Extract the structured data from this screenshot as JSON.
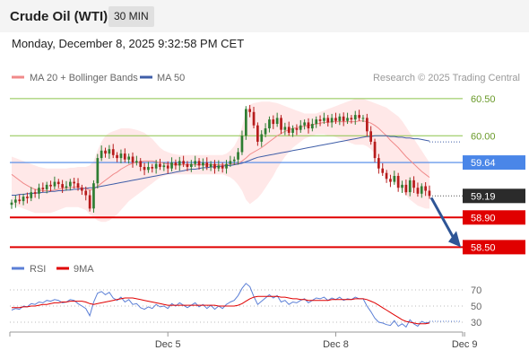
{
  "header": {
    "instrument": "Crude Oil (WTI)",
    "timeframe": "30 MIN",
    "datetime": "Monday, December 8, 2025 9:32:58 PM CET"
  },
  "legend": {
    "ma20": "MA 20 + Bollinger Bands",
    "ma50": "MA 50",
    "credit": "Research © 2025 Trading Central",
    "rsi": "RSI",
    "rsi_ma": "9MA"
  },
  "colors": {
    "candle_up": "#2e7d32",
    "candle_down": "#b71c1c",
    "bollinger": "#ffd6d6",
    "ma20": "#f08a8a",
    "ma50": "#3f5ea8",
    "resistance": "#8bc34a",
    "pivot": "#4a86e8",
    "support": "#e00000",
    "rsi": "#5b7fd6",
    "rsi_ma": "#e00000",
    "current": "#2b2b2b",
    "arrow": "#2e5596"
  },
  "chart_data": {
    "type": "candlestick",
    "y_range": [
      58.42,
      60.62
    ],
    "levels": [
      {
        "label": "60.50",
        "value": 60.5,
        "kind": "resistance"
      },
      {
        "label": "60.00",
        "value": 60.0,
        "kind": "resistance"
      },
      {
        "label": "59.64",
        "value": 59.64,
        "kind": "pivot"
      },
      {
        "label": "59.19",
        "value": 59.19,
        "kind": "current"
      },
      {
        "label": "58.90",
        "value": 58.9,
        "kind": "support"
      },
      {
        "label": "58.50",
        "value": 58.5,
        "kind": "support"
      }
    ],
    "x_ticks": [
      "Dec 5",
      "Dec 8",
      "Dec 9"
    ],
    "x_tick_index": [
      40,
      83,
      116
    ],
    "close": [
      59.1,
      59.14,
      59.12,
      59.18,
      59.16,
      59.24,
      59.22,
      59.3,
      59.28,
      59.34,
      59.32,
      59.38,
      59.35,
      59.3,
      59.32,
      59.38,
      59.36,
      59.3,
      59.26,
      59.2,
      59.02,
      59.36,
      59.7,
      59.8,
      59.76,
      59.82,
      59.74,
      59.7,
      59.76,
      59.68,
      59.72,
      59.64,
      59.66,
      59.58,
      59.54,
      59.58,
      59.56,
      59.62,
      59.58,
      59.6,
      59.56,
      59.64,
      59.6,
      59.66,
      59.62,
      59.58,
      59.62,
      59.66,
      59.6,
      59.64,
      59.58,
      59.62,
      59.56,
      59.6,
      59.56,
      59.62,
      59.66,
      59.68,
      59.78,
      60.0,
      60.36,
      60.32,
      60.14,
      59.92,
      60.02,
      60.1,
      60.22,
      60.16,
      60.24,
      60.08,
      60.12,
      60.04,
      60.1,
      60.08,
      60.14,
      60.18,
      60.1,
      60.16,
      60.22,
      60.2,
      60.24,
      60.18,
      60.24,
      60.2,
      60.26,
      60.2,
      60.24,
      60.22,
      60.28,
      60.24,
      60.24,
      60.06,
      59.92,
      59.7,
      59.56,
      59.5,
      59.42,
      59.38,
      59.46,
      59.3,
      59.34,
      59.24,
      59.4,
      59.3,
      59.22,
      59.32,
      59.26,
      59.19
    ],
    "ma20": [
      59.48,
      59.44,
      59.4,
      59.36,
      59.33,
      59.3,
      59.28,
      59.27,
      59.26,
      59.26,
      59.26,
      59.27,
      59.28,
      59.29,
      59.3,
      59.3,
      59.31,
      59.31,
      59.3,
      59.29,
      59.27,
      59.28,
      59.32,
      59.36,
      59.4,
      59.44,
      59.48,
      59.51,
      59.55,
      59.58,
      59.61,
      59.63,
      59.64,
      59.65,
      59.66,
      59.66,
      59.66,
      59.65,
      59.64,
      59.63,
      59.62,
      59.62,
      59.61,
      59.61,
      59.61,
      59.61,
      59.61,
      59.61,
      59.61,
      59.61,
      59.61,
      59.61,
      59.61,
      59.61,
      59.61,
      59.61,
      59.62,
      59.62,
      59.63,
      59.66,
      59.7,
      59.75,
      59.78,
      59.81,
      59.84,
      59.88,
      59.92,
      59.96,
      60.0,
      60.03,
      60.06,
      60.08,
      60.1,
      60.11,
      60.12,
      60.13,
      60.14,
      60.15,
      60.16,
      60.17,
      60.18,
      60.18,
      60.19,
      60.19,
      60.19,
      60.19,
      60.19,
      60.19,
      60.19,
      60.2,
      60.2,
      60.19,
      60.17,
      60.14,
      60.1,
      60.05,
      60.0,
      59.94,
      59.89,
      59.84,
      59.78,
      59.72,
      59.67,
      59.62,
      59.57,
      59.52,
      59.48,
      59.44
    ],
    "bb_upper": [
      59.72,
      59.7,
      59.68,
      59.66,
      59.64,
      59.62,
      59.6,
      59.58,
      59.57,
      59.56,
      59.56,
      59.56,
      59.56,
      59.56,
      59.56,
      59.57,
      59.57,
      59.58,
      59.58,
      59.58,
      59.6,
      59.66,
      59.8,
      59.92,
      60.0,
      60.04,
      60.06,
      60.08,
      60.1,
      60.1,
      60.1,
      60.09,
      60.08,
      60.06,
      60.04,
      60.0,
      59.96,
      59.9,
      59.84,
      59.8,
      59.78,
      59.76,
      59.75,
      59.74,
      59.74,
      59.74,
      59.74,
      59.74,
      59.74,
      59.74,
      59.74,
      59.74,
      59.74,
      59.74,
      59.74,
      59.76,
      59.8,
      59.86,
      59.96,
      60.12,
      60.34,
      60.42,
      60.44,
      60.45,
      60.46,
      60.46,
      60.46,
      60.45,
      60.44,
      60.42,
      60.4,
      60.38,
      60.36,
      60.34,
      60.32,
      60.3,
      60.3,
      60.3,
      60.3,
      60.32,
      60.34,
      60.36,
      60.38,
      60.4,
      60.42,
      60.44,
      60.46,
      60.48,
      60.5,
      60.5,
      60.5,
      60.48,
      60.46,
      60.44,
      60.42,
      60.4,
      60.38,
      60.34,
      60.3,
      60.26,
      60.2,
      60.12,
      60.04,
      59.96,
      59.88,
      59.8,
      59.72,
      59.64
    ],
    "bb_lower": [
      59.08,
      59.06,
      59.04,
      59.02,
      59.0,
      58.98,
      58.96,
      58.96,
      58.96,
      58.96,
      58.96,
      58.98,
      59.0,
      59.02,
      59.04,
      59.04,
      59.04,
      59.04,
      59.02,
      59.0,
      58.94,
      58.9,
      58.86,
      58.84,
      58.84,
      58.86,
      58.9,
      58.94,
      59.0,
      59.06,
      59.12,
      59.16,
      59.2,
      59.24,
      59.28,
      59.32,
      59.36,
      59.4,
      59.44,
      59.46,
      59.48,
      59.48,
      59.48,
      59.48,
      59.48,
      59.48,
      59.48,
      59.48,
      59.48,
      59.48,
      59.48,
      59.48,
      59.48,
      59.48,
      59.48,
      59.46,
      59.44,
      59.4,
      59.34,
      59.26,
      59.14,
      59.08,
      59.12,
      59.16,
      59.22,
      59.3,
      59.38,
      59.46,
      59.56,
      59.64,
      59.72,
      59.78,
      59.84,
      59.88,
      59.92,
      59.96,
      59.98,
      60.0,
      60.02,
      60.02,
      60.02,
      60.0,
      60.0,
      59.98,
      59.96,
      59.94,
      59.92,
      59.9,
      59.88,
      59.88,
      59.88,
      59.86,
      59.82,
      59.76,
      59.68,
      59.6,
      59.52,
      59.44,
      59.38,
      59.32,
      59.26,
      59.2,
      59.14,
      59.1,
      59.06,
      59.04,
      59.02,
      59.02
    ],
    "ma50": [
      59.2,
      59.2,
      59.21,
      59.21,
      59.22,
      59.22,
      59.23,
      59.23,
      59.24,
      59.24,
      59.25,
      59.25,
      59.26,
      59.26,
      59.27,
      59.27,
      59.28,
      59.28,
      59.29,
      59.29,
      59.3,
      59.3,
      59.31,
      59.32,
      59.33,
      59.34,
      59.35,
      59.36,
      59.37,
      59.38,
      59.39,
      59.4,
      59.41,
      59.42,
      59.43,
      59.44,
      59.45,
      59.46,
      59.47,
      59.48,
      59.49,
      59.5,
      59.51,
      59.52,
      59.53,
      59.54,
      59.55,
      59.55,
      59.56,
      59.57,
      59.57,
      59.58,
      59.58,
      59.59,
      59.59,
      59.6,
      59.6,
      59.61,
      59.62,
      59.63,
      59.65,
      59.67,
      59.69,
      59.71,
      59.72,
      59.73,
      59.74,
      59.75,
      59.76,
      59.77,
      59.78,
      59.79,
      59.8,
      59.81,
      59.82,
      59.83,
      59.84,
      59.85,
      59.86,
      59.87,
      59.88,
      59.89,
      59.9,
      59.91,
      59.92,
      59.93,
      59.94,
      59.95,
      59.96,
      59.97,
      59.98,
      59.99,
      59.99,
      60.0,
      60.0,
      60.0,
      60.0,
      59.99,
      59.99,
      59.98,
      59.98,
      59.97,
      59.97,
      59.96,
      59.96,
      59.95,
      59.94,
      59.93
    ],
    "rsi": [
      45,
      47,
      46,
      50,
      49,
      53,
      52,
      55,
      54,
      57,
      56,
      58,
      57,
      54,
      55,
      58,
      57,
      53,
      50,
      47,
      38,
      55,
      66,
      68,
      64,
      67,
      60,
      57,
      61,
      55,
      58,
      52,
      53,
      48,
      46,
      49,
      47,
      52,
      49,
      50,
      47,
      53,
      50,
      54,
      51,
      48,
      51,
      54,
      49,
      52,
      47,
      51,
      46,
      50,
      47,
      52,
      55,
      57,
      63,
      72,
      78,
      74,
      62,
      52,
      56,
      60,
      64,
      60,
      63,
      55,
      57,
      52,
      55,
      54,
      57,
      59,
      54,
      57,
      60,
      59,
      61,
      57,
      60,
      58,
      61,
      57,
      59,
      58,
      61,
      59,
      59,
      50,
      43,
      35,
      30,
      29,
      27,
      26,
      32,
      25,
      28,
      24,
      33,
      28,
      25,
      31,
      29,
      30
    ],
    "rsi_ma": [
      48,
      48,
      48,
      49,
      49,
      50,
      50,
      51,
      52,
      52,
      53,
      54,
      54,
      55,
      55,
      56,
      56,
      56,
      56,
      55,
      53,
      52,
      53,
      54,
      55,
      56,
      57,
      58,
      59,
      60,
      60,
      60,
      59,
      58,
      57,
      56,
      55,
      54,
      53,
      52,
      51,
      51,
      51,
      51,
      51,
      51,
      51,
      51,
      51,
      51,
      51,
      51,
      51,
      50,
      50,
      50,
      50,
      50,
      51,
      53,
      56,
      59,
      61,
      62,
      62,
      62,
      62,
      62,
      62,
      61,
      61,
      60,
      59,
      59,
      58,
      58,
      57,
      57,
      57,
      57,
      57,
      57,
      58,
      58,
      58,
      58,
      58,
      58,
      59,
      59,
      59,
      58,
      56,
      54,
      51,
      48,
      45,
      42,
      39,
      36,
      33,
      31,
      30,
      29,
      28,
      28,
      28,
      29
    ],
    "rsi_levels": [
      {
        "label": "70",
        "value": 70
      },
      {
        "label": "50",
        "value": 50
      },
      {
        "label": "30",
        "value": 30
      }
    ]
  }
}
